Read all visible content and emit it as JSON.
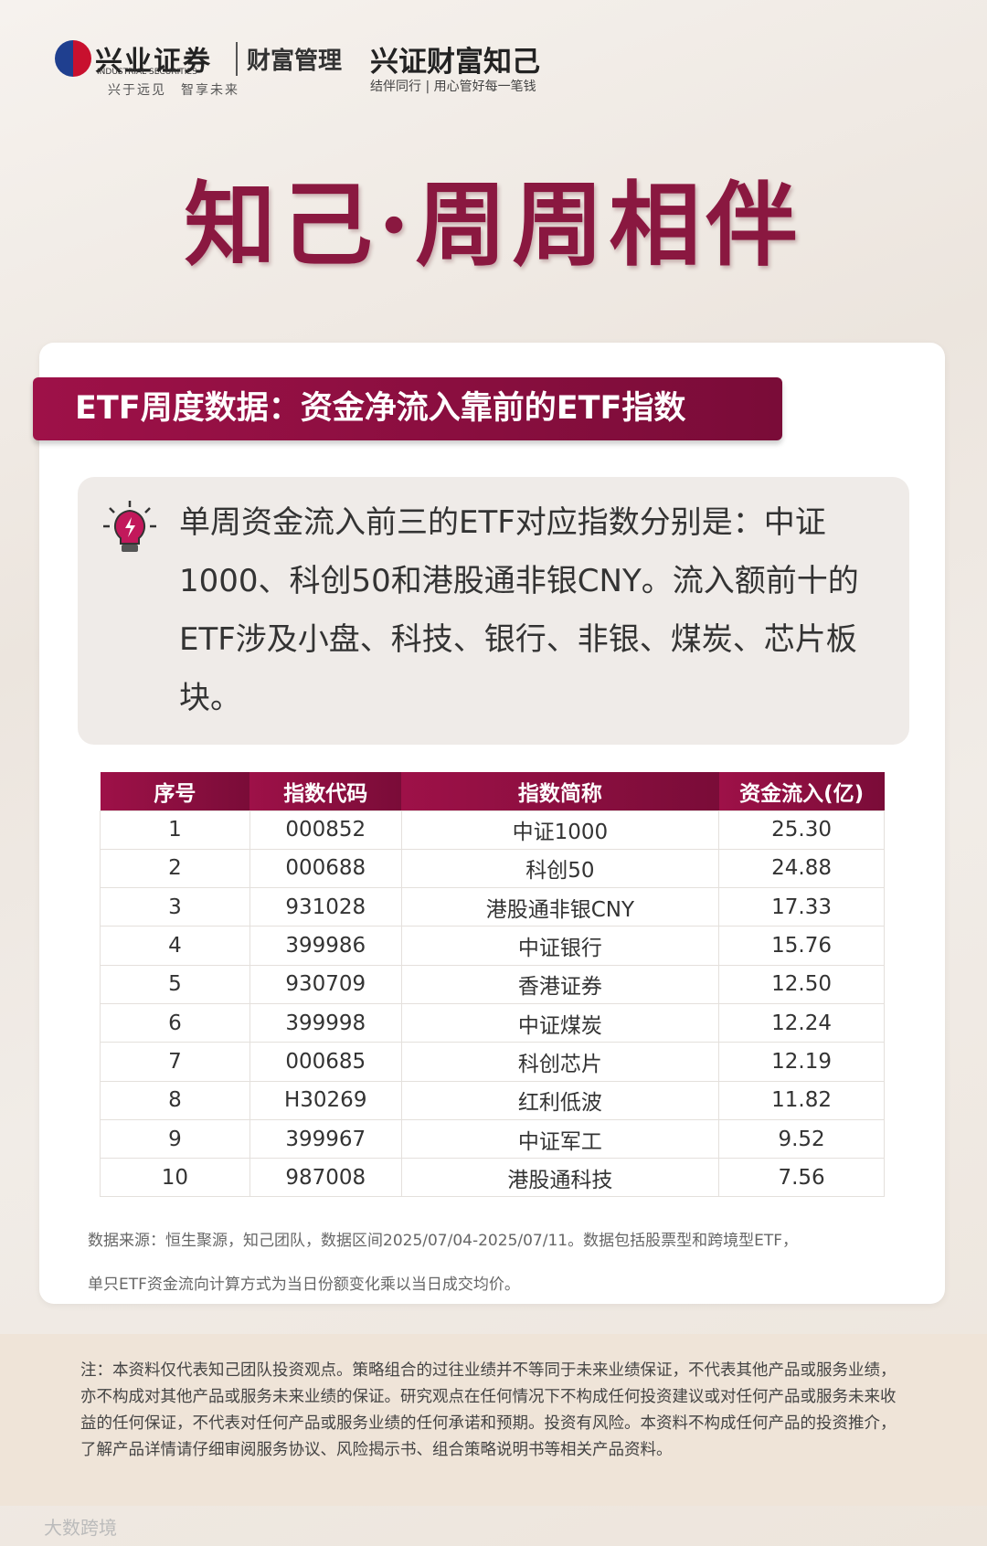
{
  "header": {
    "brand": "兴业证券",
    "brand_en": "INDUSTRIAL SECURITIES",
    "division": "财富管理",
    "slogan": "兴于远见　智享未来",
    "product": "兴证财富知己",
    "product_slogan": "结伴同行 | 用心管好每一笔钱"
  },
  "title": "知己·周周相伴",
  "section": {
    "heading": "ETF周度数据：资金净流入靠前的ETF指数",
    "summary": "单周资金流入前三的ETF对应指数分别是：中证1000、科创50和港股通非银CNY。流入额前十的ETF涉及小盘、科技、银行、非银、煤炭、芯片板块。",
    "table": {
      "columns": [
        "序号",
        "指数代码",
        "指数简称",
        "资金流入(亿)"
      ],
      "rows": [
        [
          "1",
          "000852",
          "中证1000",
          "25.30"
        ],
        [
          "2",
          "000688",
          "科创50",
          "24.88"
        ],
        [
          "3",
          "931028",
          "港股通非银CNY",
          "17.33"
        ],
        [
          "4",
          "399986",
          "中证银行",
          "15.76"
        ],
        [
          "5",
          "930709",
          "香港证券",
          "12.50"
        ],
        [
          "6",
          "399998",
          "中证煤炭",
          "12.24"
        ],
        [
          "7",
          "000685",
          "科创芯片",
          "12.19"
        ],
        [
          "8",
          "H30269",
          "红利低波",
          "11.82"
        ],
        [
          "9",
          "399967",
          "中证军工",
          "9.52"
        ],
        [
          "10",
          "987008",
          "港股通科技",
          "7.56"
        ]
      ]
    },
    "source": [
      "数据来源：恒生聚源，知己团队，数据区间2025/07/04-2025/07/11。数据包括股票型和跨境型ETF，",
      "单只ETF资金流向计算方式为当日份额变化乘以当日成交均价。"
    ]
  },
  "disclaimer": "注：本资料仅代表知己团队投资观点。策略组合的过往业绩并不等同于未来业绩保证，不代表其他产品或服务业绩，亦不构成对其他产品或服务未来业绩的保证。研究观点在任何情况下不构成任何投资建议或对任何产品或服务未来收益的任何保证，不代表对任何产品或服务业绩的任何承诺和预期。投资有风险。本资料不构成任何产品的投资推介，了解产品详情请仔细审阅服务协议、风险揭示书、组合策略说明书等相关产品资料。",
  "watermark": "大数跨境"
}
